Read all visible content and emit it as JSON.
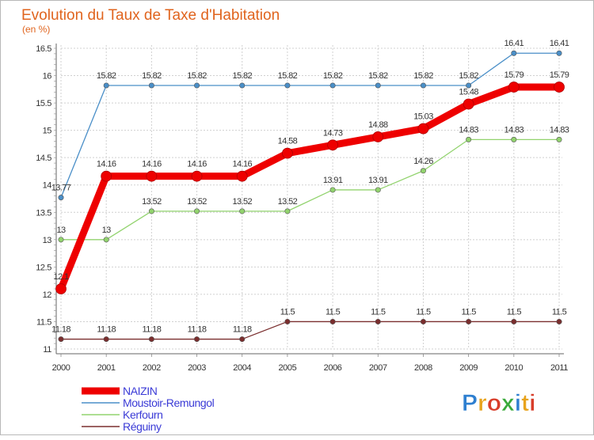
{
  "chart_data": {
    "type": "line",
    "title": "Evolution du Taux de Taxe d'Habitation",
    "subtitle": "(en %)",
    "x": [
      "2000",
      "2001",
      "2002",
      "2003",
      "2004",
      "2005",
      "2006",
      "2007",
      "2008",
      "2009",
      "2010",
      "2011"
    ],
    "ylim": [
      11,
      16.5
    ],
    "yticks": [
      11,
      11.5,
      12,
      12.5,
      13,
      13.5,
      14,
      14.5,
      15,
      15.5,
      16,
      16.5
    ],
    "ytick_labels": [
      "11",
      "11.5",
      "12",
      "12.5",
      "13",
      "13.5",
      "14",
      "14.5",
      "15",
      "15.5",
      "16",
      "16.5"
    ],
    "grid": true,
    "legend_position": "bottom-left",
    "series": [
      {
        "name": "Moustoir-Remungol",
        "color": "#4a8fc8",
        "values": [
          13.77,
          15.82,
          15.82,
          15.82,
          15.82,
          15.82,
          15.82,
          15.82,
          15.82,
          15.82,
          16.41,
          16.41
        ],
        "labels": [
          "13.77",
          "15.82",
          "15.82",
          "15.82",
          "15.82",
          "15.82",
          "15.82",
          "15.82",
          "15.82",
          "15.82",
          "16.41",
          "16.41"
        ]
      },
      {
        "name": "Kerfourn",
        "color": "#92d36e",
        "values": [
          13,
          13,
          13.52,
          13.52,
          13.52,
          13.52,
          13.91,
          13.91,
          14.26,
          14.83,
          14.83,
          14.83
        ],
        "labels": [
          "13",
          "13",
          "13.52",
          "13.52",
          "13.52",
          "13.52",
          "13.91",
          "13.91",
          "14.26",
          "14.83",
          "14.83",
          "14.83"
        ]
      },
      {
        "name": "Réguiny",
        "color": "#7a2e2e",
        "values": [
          11.18,
          11.18,
          11.18,
          11.18,
          11.18,
          11.5,
          11.5,
          11.5,
          11.5,
          11.5,
          11.5,
          11.5
        ],
        "labels": [
          "11.18",
          "11.18",
          "11.18",
          "11.18",
          "11.18",
          "11.5",
          "11.5",
          "11.5",
          "11.5",
          "11.5",
          "11.5",
          "11.5"
        ]
      },
      {
        "name": "NAIZIN",
        "color": "#ee0000",
        "values": [
          12.1,
          14.16,
          14.16,
          14.16,
          14.16,
          14.58,
          14.73,
          14.88,
          15.03,
          15.48,
          15.79,
          15.79
        ],
        "labels": [
          "12.1",
          "14.16",
          "14.16",
          "14.16",
          "14.16",
          "14.58",
          "14.73",
          "14.88",
          "15.03",
          "15.48",
          "15.79",
          "15.79"
        ]
      }
    ],
    "legend": [
      "NAIZIN",
      "Moustoir-Remungol",
      "Kerfourn",
      "Réguiny"
    ]
  },
  "colors": {
    "title": "#e0641e",
    "grid": "#d0d0d0",
    "legend_text": "#3a3ad6"
  },
  "logo": {
    "letters": [
      "P",
      "r",
      "o",
      "x",
      "i",
      "t",
      "i"
    ],
    "colors": [
      "#2e7fd0",
      "#e8a31c",
      "#d83d2a",
      "#3aaa3a",
      "#2e7fd0",
      "#e8a31c",
      "#d83d2a"
    ]
  }
}
